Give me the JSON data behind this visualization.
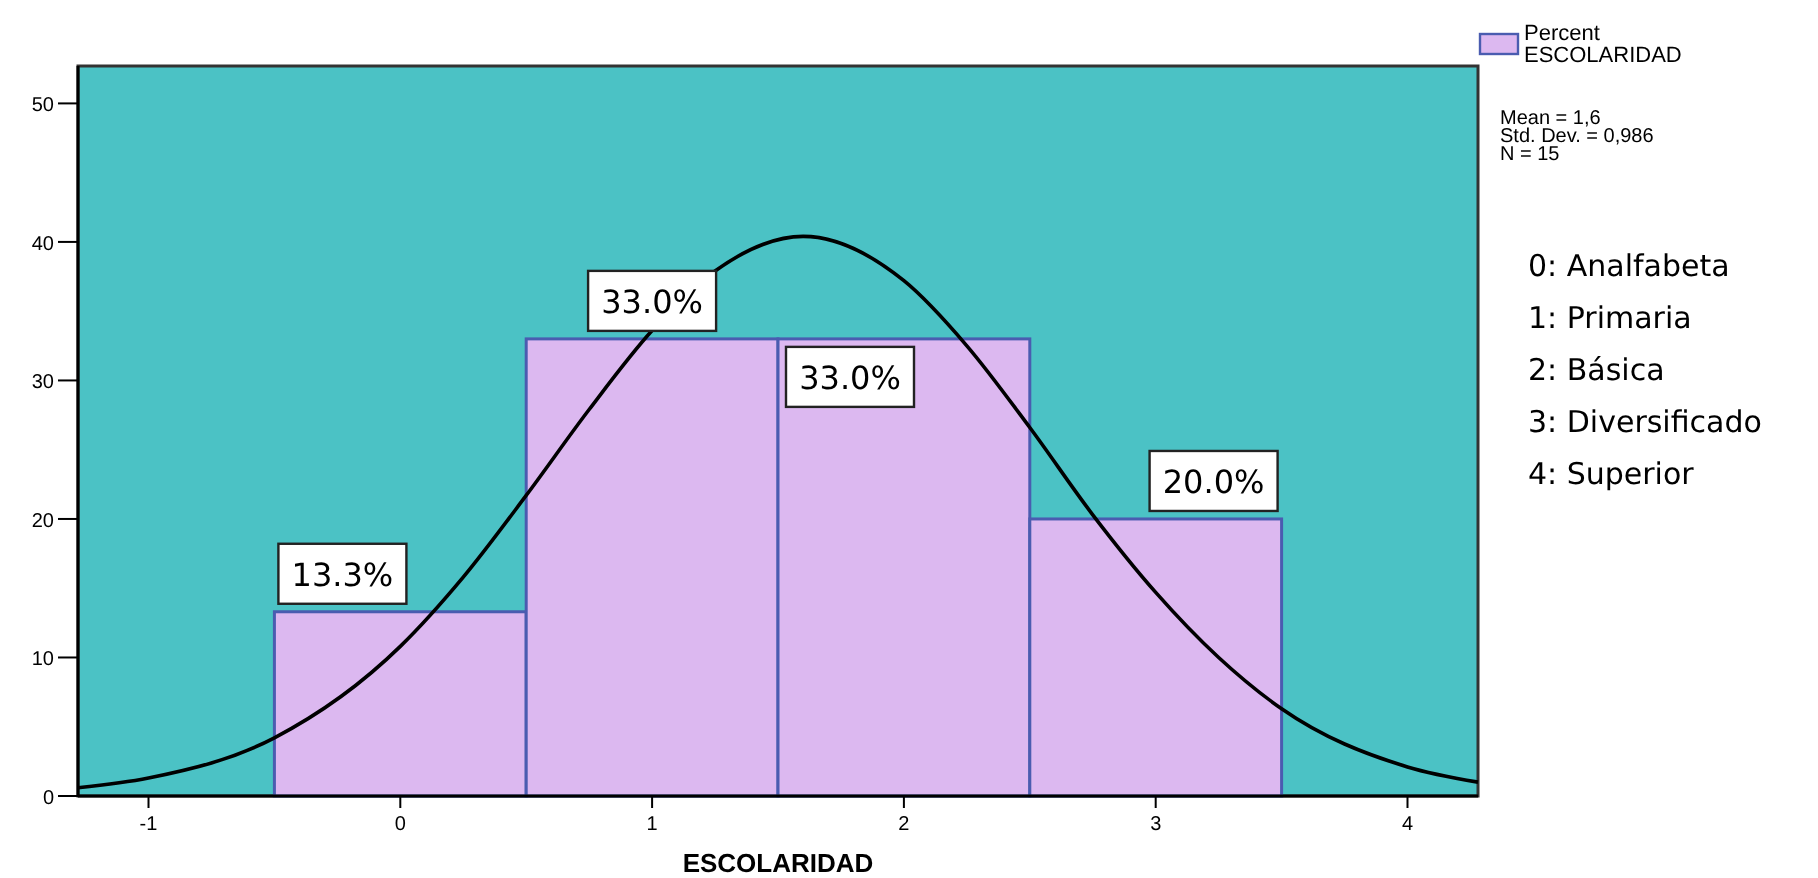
{
  "chart_data": {
    "type": "histogram",
    "xlabel": "ESCOLARIDAD",
    "bins": [
      -0.5,
      0.5,
      1.5,
      2.5,
      3.5
    ],
    "series": [
      {
        "name": "Percent ESCOLARIDAD",
        "color": "#dcb8f0",
        "values": [
          13.3,
          33.0,
          33.0,
          20.0
        ],
        "value_labels": [
          "13.3%",
          "33.0%",
          "33.0%",
          "20.0%"
        ]
      },
      {
        "type": "line",
        "color": "#000000",
        "x": [
          -1.28,
          -1,
          -0.5,
          0,
          0.25,
          0.5,
          0.75,
          1,
          1.25,
          1.6,
          2,
          2.25,
          2.5,
          2.75,
          3,
          3.25,
          3.5,
          4,
          4.28
        ],
        "values": [
          0.6,
          1.3,
          4.2,
          10.8,
          15.8,
          21.7,
          27.9,
          33.6,
          37.9,
          40.4,
          37.2,
          32.5,
          26.6,
          20.3,
          14.7,
          10.0,
          6.3,
          2.1,
          1.0
        ]
      }
    ],
    "xlim": [
      -1.28,
      4.28
    ],
    "xticks": [
      -1,
      0,
      1,
      2,
      3,
      4
    ],
    "ylim": [
      0,
      52.7
    ],
    "yticks": [
      0,
      10,
      20,
      30,
      40,
      50
    ],
    "grid": false,
    "legend": "top right",
    "annotations": [
      "Mean = 1,6",
      "Std. Dev. = 0,986",
      "N = 15",
      "0: Analfabeta",
      "1: Primaria",
      "2: Básica",
      "3: Diversificado",
      "4: Superior"
    ]
  }
}
